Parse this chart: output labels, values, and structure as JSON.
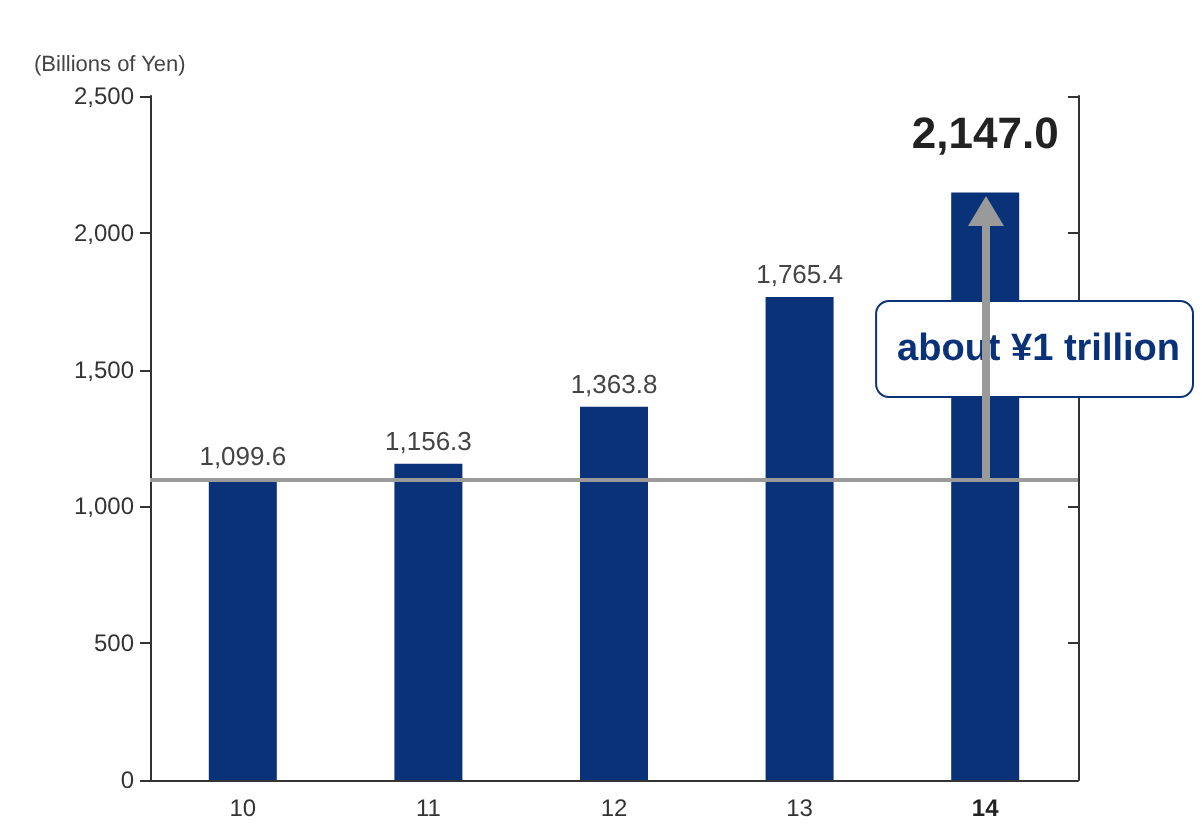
{
  "chart_data": {
    "type": "bar",
    "ylabel": "(Billions of Yen)",
    "categories": [
      "10",
      "11",
      "12",
      "13",
      "14"
    ],
    "values": [
      1099.6,
      1156.3,
      1363.8,
      1765.4,
      2147.0
    ],
    "color": "#0a3278",
    "value_labels": [
      "1,099.6",
      "1,156.3",
      "1,363.8",
      "1,765.4",
      "2,147.0"
    ],
    "ylim": [
      0,
      2500
    ],
    "yticks": [
      0,
      500,
      {
        "value": 1000,
        "label": "1,000"
      },
      {
        "value": 1500,
        "label": "1,500"
      },
      {
        "value": 2000,
        "label": "2,000"
      },
      {
        "value": 2500,
        "label": "2,500"
      }
    ],
    "grid": false,
    "ref_lines": [
      {
        "axis": "y",
        "value": 1099.6,
        "color": "#9a9a9a"
      }
    ],
    "annotations": [
      "about ¥1 trillion"
    ]
  }
}
